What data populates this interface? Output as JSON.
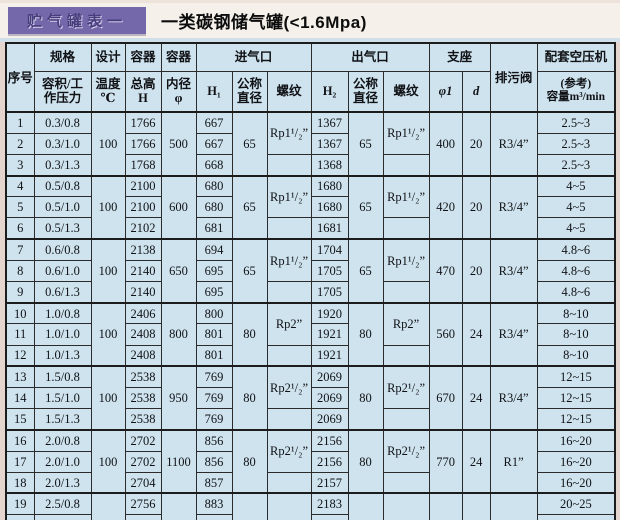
{
  "colors": {
    "badge_bg": "#7568aa",
    "table_bg": "#cfe3ee",
    "strip_bg": "#cfe0ea"
  },
  "header": {
    "badge": "贮气罐表一",
    "title": "一类碳钢储气罐(<1.6Mpa)"
  },
  "table": {
    "head": {
      "serial": "序号",
      "spec_group": "规格",
      "spec_sub": "容积/工\n作压力",
      "design_group": "设计",
      "design_sub": "温度\n℃",
      "height_group": "容器",
      "height_sub": "总高\nH",
      "dia_group": "容器",
      "dia_sub": "内径\nφ",
      "inlet_group": "进气口",
      "inlet_h1": "H₁",
      "inlet_dn": "公称\n直径",
      "inlet_thread": "螺纹",
      "outlet_group": "出气口",
      "outlet_h2": "H₂",
      "outlet_dn": "公称\n直径",
      "outlet_thread": "螺纹",
      "support_group": "支座",
      "support_phi": "φ1",
      "support_d": "d",
      "drain": "排污阀",
      "compressor_group": "配套空压机",
      "compressor_sub": "(参考)\n容量m³/min"
    },
    "groups": [
      {
        "temp": "100",
        "inner_dia": "500",
        "inlet_dn": "65",
        "inlet_thread": "Rp1¹/₂”",
        "outlet_dn": "65",
        "outlet_thread": "Rp1¹/₂”",
        "phi1": "400",
        "d": "20",
        "drain": "R3/4”",
        "rows": [
          {
            "no": "1",
            "spec": "0.3/0.8",
            "h": "1766",
            "h1": "667",
            "h2": "1367",
            "cap": "2.5~3"
          },
          {
            "no": "2",
            "spec": "0.3/1.0",
            "h": "1766",
            "h1": "667",
            "h2": "1367",
            "cap": "2.5~3"
          },
          {
            "no": "3",
            "spec": "0.3/1.3",
            "h": "1768",
            "h1": "668",
            "h2": "1368",
            "cap": "2.5~3"
          }
        ]
      },
      {
        "temp": "100",
        "inner_dia": "600",
        "inlet_dn": "65",
        "inlet_thread": "Rp1¹/₂”",
        "outlet_dn": "65",
        "outlet_thread": "Rp1¹/₂”",
        "phi1": "420",
        "d": "20",
        "drain": "R3/4”",
        "rows": [
          {
            "no": "4",
            "spec": "0.5/0.8",
            "h": "2100",
            "h1": "680",
            "h2": "1680",
            "cap": "4~5"
          },
          {
            "no": "5",
            "spec": "0.5/1.0",
            "h": "2100",
            "h1": "680",
            "h2": "1680",
            "cap": "4~5"
          },
          {
            "no": "6",
            "spec": "0.5/1.3",
            "h": "2102",
            "h1": "681",
            "h2": "1681",
            "cap": "4~5"
          }
        ]
      },
      {
        "temp": "100",
        "inner_dia": "650",
        "inlet_dn": "65",
        "inlet_thread": "Rp1¹/₂”",
        "outlet_dn": "65",
        "outlet_thread": "Rp1¹/₂”",
        "phi1": "470",
        "d": "20",
        "drain": "R3/4”",
        "rows": [
          {
            "no": "7",
            "spec": "0.6/0.8",
            "h": "2138",
            "h1": "694",
            "h2": "1704",
            "cap": "4.8~6"
          },
          {
            "no": "8",
            "spec": "0.6/1.0",
            "h": "2140",
            "h1": "695",
            "h2": "1705",
            "cap": "4.8~6"
          },
          {
            "no": "9",
            "spec": "0.6/1.3",
            "h": "2140",
            "h1": "695",
            "h2": "1705",
            "cap": "4.8~6"
          }
        ]
      },
      {
        "temp": "100",
        "inner_dia": "800",
        "inlet_dn": "80",
        "inlet_thread": "Rp2”",
        "outlet_dn": "80",
        "outlet_thread": "Rp2”",
        "phi1": "560",
        "d": "24",
        "drain": "R3/4”",
        "rows": [
          {
            "no": "10",
            "spec": "1.0/0.8",
            "h": "2406",
            "h1": "800",
            "h2": "1920",
            "cap": "8~10"
          },
          {
            "no": "11",
            "spec": "1.0/1.0",
            "h": "2408",
            "h1": "801",
            "h2": "1921",
            "cap": "8~10"
          },
          {
            "no": "12",
            "spec": "1.0/1.3",
            "h": "2408",
            "h1": "801",
            "h2": "1921",
            "cap": "8~10"
          }
        ]
      },
      {
        "temp": "100",
        "inner_dia": "950",
        "inlet_dn": "80",
        "inlet_thread": "Rp2¹/₂”",
        "outlet_dn": "80",
        "outlet_thread": "Rp2¹/₂”",
        "phi1": "670",
        "d": "24",
        "drain": "R3/4”",
        "rows": [
          {
            "no": "13",
            "spec": "1.5/0.8",
            "h": "2538",
            "h1": "769",
            "h2": "2069",
            "cap": "12~15"
          },
          {
            "no": "14",
            "spec": "1.5/1.0",
            "h": "2538",
            "h1": "769",
            "h2": "2069",
            "cap": "12~15"
          },
          {
            "no": "15",
            "spec": "1.5/1.3",
            "h": "2538",
            "h1": "769",
            "h2": "2069",
            "cap": "12~15"
          }
        ]
      },
      {
        "temp": "100",
        "inner_dia": "1100",
        "inlet_dn": "80",
        "inlet_thread": "Rp2¹/₂”",
        "outlet_dn": "80",
        "outlet_thread": "Rp2¹/₂”",
        "phi1": "770",
        "d": "24",
        "drain": "R1”",
        "rows": [
          {
            "no": "16",
            "spec": "2.0/0.8",
            "h": "2702",
            "h1": "856",
            "h2": "2156",
            "cap": "16~20"
          },
          {
            "no": "17",
            "spec": "2.0/1.0",
            "h": "2702",
            "h1": "856",
            "h2": "2156",
            "cap": "16~20"
          },
          {
            "no": "18",
            "spec": "2.0/1.3",
            "h": "2704",
            "h1": "857",
            "h2": "2157",
            "cap": "16~20"
          }
        ]
      },
      {
        "partial": true,
        "temp": "",
        "inner_dia": "",
        "inlet_dn": "",
        "inlet_thread": "",
        "outlet_dn": "",
        "outlet_thread": "",
        "phi1": "",
        "d": "",
        "drain": "",
        "rows": [
          {
            "no": "19",
            "spec": "2.5/0.8",
            "h": "2756",
            "h1": "883",
            "h2": "2183",
            "cap": "20~25"
          }
        ]
      }
    ]
  }
}
